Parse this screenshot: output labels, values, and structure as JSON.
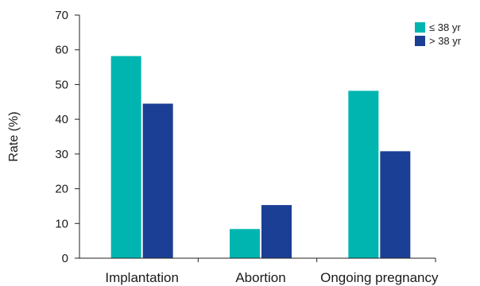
{
  "chart_data": {
    "type": "bar",
    "categories": [
      "Implantation",
      "Abortion",
      "Ongoing pregnancy"
    ],
    "series": [
      {
        "name": "≤ 38 yr",
        "color": "#00b5b0",
        "values": [
          58.2,
          8.4,
          48.2
        ]
      },
      {
        "name": "> 38 yr",
        "color": "#1a3f95",
        "values": [
          44.5,
          15.3,
          30.8
        ]
      }
    ],
    "title": "",
    "xlabel": "",
    "ylabel": "Rate (%)",
    "ylim": [
      0,
      70
    ],
    "yticks": [
      0,
      10,
      20,
      30,
      40,
      50,
      60,
      70
    ],
    "grid": false,
    "legend_position": "top-right"
  }
}
